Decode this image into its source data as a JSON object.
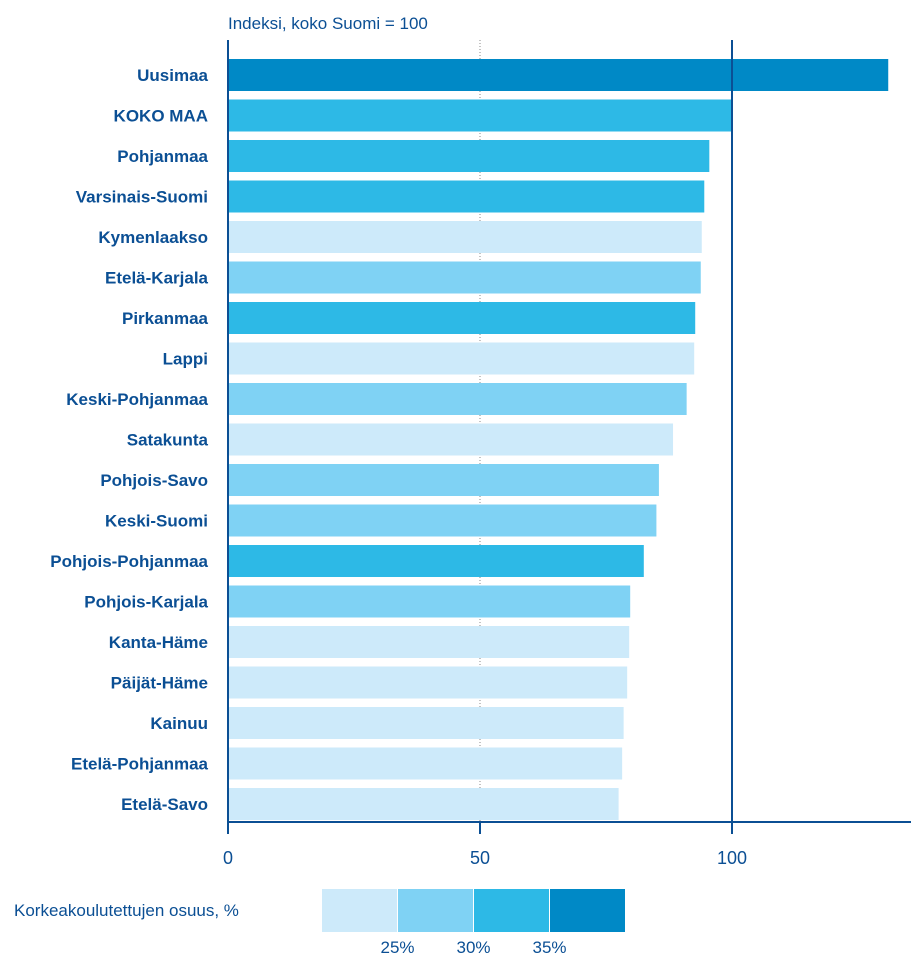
{
  "chart_data": {
    "type": "bar",
    "orientation": "horizontal",
    "subtitle": "Indeksi, koko Suomi = 100",
    "xlim": [
      0,
      135
    ],
    "xticks": [
      0,
      50,
      100
    ],
    "reference_line": 100,
    "grid": "x at 50",
    "categories": [
      "Uusimaa",
      "KOKO MAA",
      "Pohjanmaa",
      "Varsinais-Suomi",
      "Kymenlaakso",
      "Etelä-Karjala",
      "Pirkanmaa",
      "Lappi",
      "Keski-Pohjanmaa",
      "Satakunta",
      "Pohjois-Savo",
      "Keski-Suomi",
      "Pohjois-Pohjanmaa",
      "Pohjois-Karjala",
      "Kanta-Häme",
      "Päijät-Häme",
      "Kainuu",
      "Etelä-Pohjanmaa",
      "Etelä-Savo"
    ],
    "values": [
      131,
      100,
      95.5,
      94.5,
      94,
      93.8,
      92.7,
      92.5,
      91,
      88.3,
      85.5,
      85,
      82.5,
      79.8,
      79.6,
      79.2,
      78.5,
      78.2,
      77.5
    ],
    "share_class": [
      4,
      3,
      3,
      3,
      1,
      2,
      3,
      1,
      2,
      1,
      2,
      2,
      3,
      2,
      1,
      1,
      1,
      1,
      1
    ],
    "legend": {
      "title": "Korkeakoulutettujen osuus, %",
      "thresholds": [
        "25%",
        "30%",
        "35%"
      ],
      "colors": [
        "#cdeafa",
        "#7fd2f4",
        "#2db9e6",
        "#0089c6"
      ]
    },
    "axis_color": "#0b4f94"
  }
}
